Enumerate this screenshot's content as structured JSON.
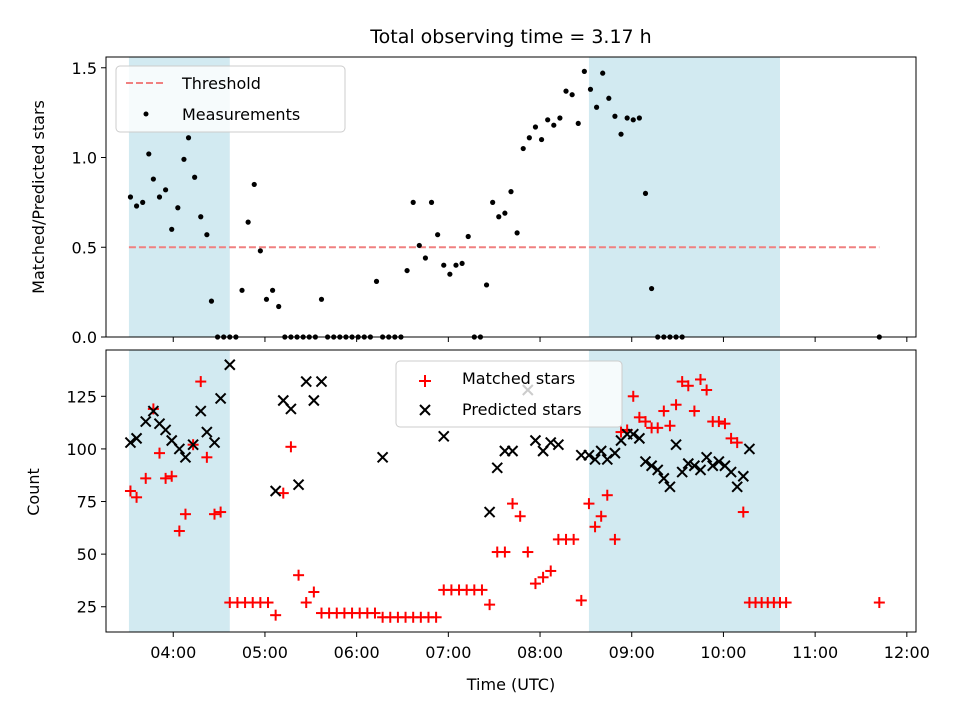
{
  "figure_title": "Total observing time = 3.17 h",
  "colors": {
    "shade": "#add8e6",
    "threshold": "#f08080",
    "measurement": "#000000",
    "matched": "#ff0000",
    "predicted": "#000000"
  },
  "chart_data": [
    {
      "type": "scatter",
      "ylabel": "Matched/Predicted stars",
      "xlim": [
        "03:16",
        "12:06"
      ],
      "ylim": [
        0,
        1.56
      ],
      "yticks": [
        0.0,
        0.5,
        1.0,
        1.5
      ],
      "ytick_labels": [
        "0.0",
        "0.5",
        "1.0",
        "1.5"
      ],
      "legend": {
        "position": "upper-left",
        "threshold_label": "Threshold",
        "measurements_label": "Measurements"
      },
      "shaded_spans": [
        [
          "03:31",
          "04:37"
        ],
        [
          "08:32",
          "10:37"
        ]
      ],
      "threshold": {
        "value": 0.5,
        "x_range": [
          "03:31",
          "11:42"
        ]
      },
      "series": [
        {
          "name": "Measurements",
          "points": [
            [
              "03:32",
              0.78
            ],
            [
              "03:36",
              0.73
            ],
            [
              "03:40",
              0.75
            ],
            [
              "03:44",
              1.02
            ],
            [
              "03:47",
              0.88
            ],
            [
              "03:51",
              0.78
            ],
            [
              "03:55",
              0.82
            ],
            [
              "03:59",
              0.6
            ],
            [
              "04:03",
              0.72
            ],
            [
              "04:07",
              0.99
            ],
            [
              "04:10",
              1.11
            ],
            [
              "04:14",
              0.89
            ],
            [
              "04:18",
              0.67
            ],
            [
              "04:22",
              0.57
            ],
            [
              "04:25",
              0.2
            ],
            [
              "04:29",
              0.0
            ],
            [
              "04:33",
              0.0
            ],
            [
              "04:37",
              0.0
            ],
            [
              "04:41",
              0.0
            ],
            [
              "04:45",
              0.26
            ],
            [
              "04:49",
              0.64
            ],
            [
              "04:53",
              0.85
            ],
            [
              "04:57",
              0.48
            ],
            [
              "05:01",
              0.21
            ],
            [
              "05:05",
              0.26
            ],
            [
              "05:09",
              0.17
            ],
            [
              "05:13",
              0.0
            ],
            [
              "05:17",
              0.0
            ],
            [
              "05:21",
              0.0
            ],
            [
              "05:25",
              0.0
            ],
            [
              "05:29",
              0.0
            ],
            [
              "05:33",
              0.0
            ],
            [
              "05:37",
              0.21
            ],
            [
              "05:41",
              0.0
            ],
            [
              "05:45",
              0.0
            ],
            [
              "05:49",
              0.0
            ],
            [
              "05:53",
              0.0
            ],
            [
              "05:57",
              0.0
            ],
            [
              "06:01",
              0.0
            ],
            [
              "06:05",
              0.0
            ],
            [
              "06:09",
              0.0
            ],
            [
              "06:13",
              0.31
            ],
            [
              "06:17",
              0.0
            ],
            [
              "06:21",
              0.0
            ],
            [
              "06:25",
              0.0
            ],
            [
              "06:29",
              0.0
            ],
            [
              "06:33",
              0.37
            ],
            [
              "06:37",
              0.75
            ],
            [
              "06:41",
              0.51
            ],
            [
              "06:45",
              0.44
            ],
            [
              "06:49",
              0.75
            ],
            [
              "06:53",
              0.57
            ],
            [
              "06:57",
              0.4
            ],
            [
              "07:01",
              0.35
            ],
            [
              "07:05",
              0.4
            ],
            [
              "07:09",
              0.41
            ],
            [
              "07:13",
              0.56
            ],
            [
              "07:17",
              0.0
            ],
            [
              "07:21",
              0.0
            ],
            [
              "07:25",
              0.29
            ],
            [
              "07:29",
              0.75
            ],
            [
              "07:33",
              0.67
            ],
            [
              "07:37",
              0.69
            ],
            [
              "07:41",
              0.81
            ],
            [
              "07:45",
              0.58
            ],
            [
              "07:49",
              1.05
            ],
            [
              "07:53",
              1.11
            ],
            [
              "07:57",
              1.17
            ],
            [
              "08:01",
              1.1
            ],
            [
              "08:05",
              1.21
            ],
            [
              "08:09",
              1.18
            ],
            [
              "08:13",
              1.22
            ],
            [
              "08:17",
              1.37
            ],
            [
              "08:21",
              1.35
            ],
            [
              "08:25",
              1.19
            ],
            [
              "08:29",
              1.48
            ],
            [
              "08:33",
              1.38
            ],
            [
              "08:37",
              1.28
            ],
            [
              "08:41",
              1.47
            ],
            [
              "08:45",
              1.33
            ],
            [
              "08:49",
              1.23
            ],
            [
              "08:53",
              1.13
            ],
            [
              "08:57",
              1.22
            ],
            [
              "09:01",
              1.21
            ],
            [
              "09:05",
              1.22
            ],
            [
              "09:09",
              0.8
            ],
            [
              "09:13",
              0.27
            ],
            [
              "09:17",
              0.0
            ],
            [
              "09:21",
              0.0
            ],
            [
              "09:25",
              0.0
            ],
            [
              "09:29",
              0.0
            ],
            [
              "09:33",
              0.0
            ],
            [
              "11:42",
              0.0
            ]
          ]
        }
      ]
    },
    {
      "type": "scatter",
      "xlabel": "Time (UTC)",
      "ylabel": "Count",
      "xlim": [
        "03:16",
        "12:06"
      ],
      "xticks": [
        "04:00",
        "05:00",
        "06:00",
        "07:00",
        "08:00",
        "09:00",
        "10:00",
        "11:00",
        "12:00"
      ],
      "ylim": [
        13,
        147
      ],
      "yticks": [
        25,
        50,
        75,
        100,
        125
      ],
      "legend": {
        "position": "upper-center",
        "matched_label": "Matched stars",
        "predicted_label": "Predicted stars"
      },
      "shaded_spans": [
        [
          "03:31",
          "04:37"
        ],
        [
          "08:32",
          "10:37"
        ]
      ],
      "series": [
        {
          "name": "Matched stars",
          "marker": "plus",
          "points": [
            [
              "03:32",
              80
            ],
            [
              "03:36",
              77
            ],
            [
              "03:42",
              86
            ],
            [
              "03:47",
              119
            ],
            [
              "03:51",
              98
            ],
            [
              "03:55",
              86
            ],
            [
              "03:59",
              87
            ],
            [
              "04:04",
              61
            ],
            [
              "04:08",
              69
            ],
            [
              "04:13",
              102
            ],
            [
              "04:18",
              132
            ],
            [
              "04:22",
              96
            ],
            [
              "04:27",
              69
            ],
            [
              "04:31",
              70
            ],
            [
              "04:37",
              27
            ],
            [
              "04:42",
              27
            ],
            [
              "04:47",
              27
            ],
            [
              "04:52",
              27
            ],
            [
              "04:57",
              27
            ],
            [
              "05:02",
              27
            ],
            [
              "05:07",
              21
            ],
            [
              "05:12",
              79
            ],
            [
              "05:17",
              101
            ],
            [
              "05:22",
              40
            ],
            [
              "05:27",
              27
            ],
            [
              "05:32",
              32
            ],
            [
              "05:37",
              22
            ],
            [
              "05:42",
              22
            ],
            [
              "05:47",
              22
            ],
            [
              "05:52",
              22
            ],
            [
              "05:57",
              22
            ],
            [
              "06:02",
              22
            ],
            [
              "06:07",
              22
            ],
            [
              "06:12",
              22
            ],
            [
              "06:17",
              20
            ],
            [
              "06:22",
              20
            ],
            [
              "06:27",
              20
            ],
            [
              "06:32",
              20
            ],
            [
              "06:37",
              20
            ],
            [
              "06:42",
              20
            ],
            [
              "06:47",
              20
            ],
            [
              "06:52",
              20
            ],
            [
              "06:57",
              33
            ],
            [
              "07:02",
              33
            ],
            [
              "07:07",
              33
            ],
            [
              "07:12",
              33
            ],
            [
              "07:17",
              33
            ],
            [
              "07:22",
              33
            ],
            [
              "07:27",
              26
            ],
            [
              "07:32",
              51
            ],
            [
              "07:37",
              51
            ],
            [
              "07:42",
              74
            ],
            [
              "07:47",
              68
            ],
            [
              "07:52",
              51
            ],
            [
              "07:57",
              36
            ],
            [
              "08:02",
              39
            ],
            [
              "08:07",
              42
            ],
            [
              "08:12",
              57
            ],
            [
              "08:17",
              57
            ],
            [
              "08:22",
              57
            ],
            [
              "08:27",
              28
            ],
            [
              "08:32",
              74
            ],
            [
              "08:36",
              63
            ],
            [
              "08:40",
              68
            ],
            [
              "08:44",
              78
            ],
            [
              "08:49",
              57
            ],
            [
              "08:53",
              108
            ],
            [
              "08:57",
              109
            ],
            [
              "09:01",
              125
            ],
            [
              "09:05",
              115
            ],
            [
              "09:09",
              113
            ],
            [
              "09:13",
              110
            ],
            [
              "09:17",
              110
            ],
            [
              "09:21",
              118
            ],
            [
              "09:25",
              111
            ],
            [
              "09:29",
              121
            ],
            [
              "09:33",
              132
            ],
            [
              "09:37",
              130
            ],
            [
              "09:41",
              118
            ],
            [
              "09:45",
              133
            ],
            [
              "09:49",
              128
            ],
            [
              "09:53",
              113
            ],
            [
              "09:57",
              113
            ],
            [
              "10:01",
              112
            ],
            [
              "10:05",
              105
            ],
            [
              "10:09",
              103
            ],
            [
              "10:13",
              70
            ],
            [
              "10:17",
              27
            ],
            [
              "10:21",
              27
            ],
            [
              "10:25",
              27
            ],
            [
              "10:29",
              27
            ],
            [
              "10:33",
              27
            ],
            [
              "10:37",
              27
            ],
            [
              "10:41",
              27
            ],
            [
              "11:42",
              27
            ]
          ]
        },
        {
          "name": "Predicted stars",
          "marker": "x",
          "points": [
            [
              "03:32",
              103
            ],
            [
              "03:36",
              105
            ],
            [
              "03:42",
              113
            ],
            [
              "03:47",
              118
            ],
            [
              "03:51",
              112
            ],
            [
              "03:55",
              109
            ],
            [
              "03:59",
              104
            ],
            [
              "04:04",
              100
            ],
            [
              "04:08",
              96
            ],
            [
              "04:13",
              102
            ],
            [
              "04:18",
              118
            ],
            [
              "04:22",
              108
            ],
            [
              "04:27",
              103
            ],
            [
              "04:31",
              124
            ],
            [
              "04:37",
              140
            ],
            [
              "05:07",
              80
            ],
            [
              "05:12",
              123
            ],
            [
              "05:17",
              119
            ],
            [
              "05:22",
              83
            ],
            [
              "05:27",
              132
            ],
            [
              "05:32",
              123
            ],
            [
              "05:37",
              132
            ],
            [
              "06:17",
              96
            ],
            [
              "06:57",
              106
            ],
            [
              "07:27",
              70
            ],
            [
              "07:32",
              91
            ],
            [
              "07:37",
              99
            ],
            [
              "07:42",
              99
            ],
            [
              "07:52",
              128
            ],
            [
              "07:57",
              104
            ],
            [
              "08:02",
              99
            ],
            [
              "08:07",
              103
            ],
            [
              "08:12",
              102
            ],
            [
              "08:27",
              97
            ],
            [
              "08:32",
              97
            ],
            [
              "08:36",
              95
            ],
            [
              "08:40",
              99
            ],
            [
              "08:44",
              95
            ],
            [
              "08:49",
              98
            ],
            [
              "08:53",
              104
            ],
            [
              "08:57",
              107
            ],
            [
              "09:01",
              107
            ],
            [
              "09:05",
              105
            ],
            [
              "09:09",
              94
            ],
            [
              "09:13",
              92
            ],
            [
              "09:17",
              90
            ],
            [
              "09:21",
              86
            ],
            [
              "09:25",
              82
            ],
            [
              "09:29",
              102
            ],
            [
              "09:33",
              89
            ],
            [
              "09:37",
              93
            ],
            [
              "09:41",
              92
            ],
            [
              "09:45",
              90
            ],
            [
              "09:49",
              96
            ],
            [
              "09:53",
              92
            ],
            [
              "09:57",
              94
            ],
            [
              "10:01",
              92
            ],
            [
              "10:05",
              89
            ],
            [
              "10:09",
              82
            ],
            [
              "10:13",
              87
            ],
            [
              "10:17",
              100
            ]
          ]
        }
      ]
    }
  ]
}
